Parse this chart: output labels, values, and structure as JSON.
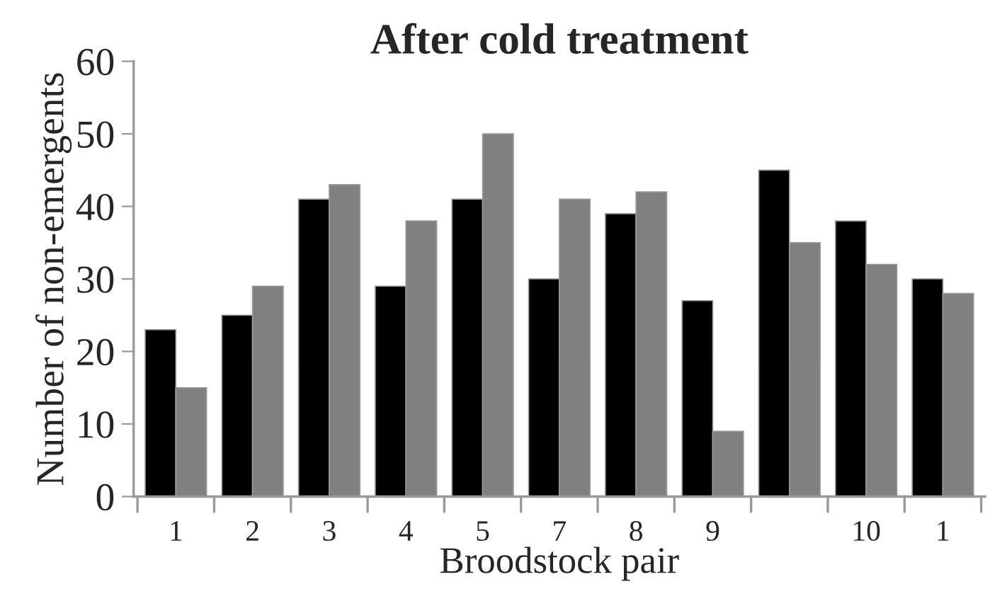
{
  "chart_data": {
    "type": "bar",
    "title": "After cold treatment",
    "xlabel": "Broodstock pair",
    "ylabel": "Number of non-emergents",
    "categories": [
      "1",
      "2",
      "3",
      "4",
      "5",
      "7",
      "8",
      "9",
      null,
      "10",
      "1"
    ],
    "series": [
      {
        "color": "#000000",
        "values": [
          23,
          25,
          41,
          29,
          41,
          30,
          39,
          27,
          45,
          38,
          30
        ]
      },
      {
        "color": "#808080",
        "values": [
          15,
          29,
          43,
          38,
          50,
          41,
          42,
          9,
          35,
          32,
          28
        ]
      }
    ],
    "ylim": [
      0,
      60
    ],
    "yticks": [
      0,
      10,
      20,
      30,
      40,
      50,
      60
    ],
    "grid": false,
    "legend": false
  }
}
